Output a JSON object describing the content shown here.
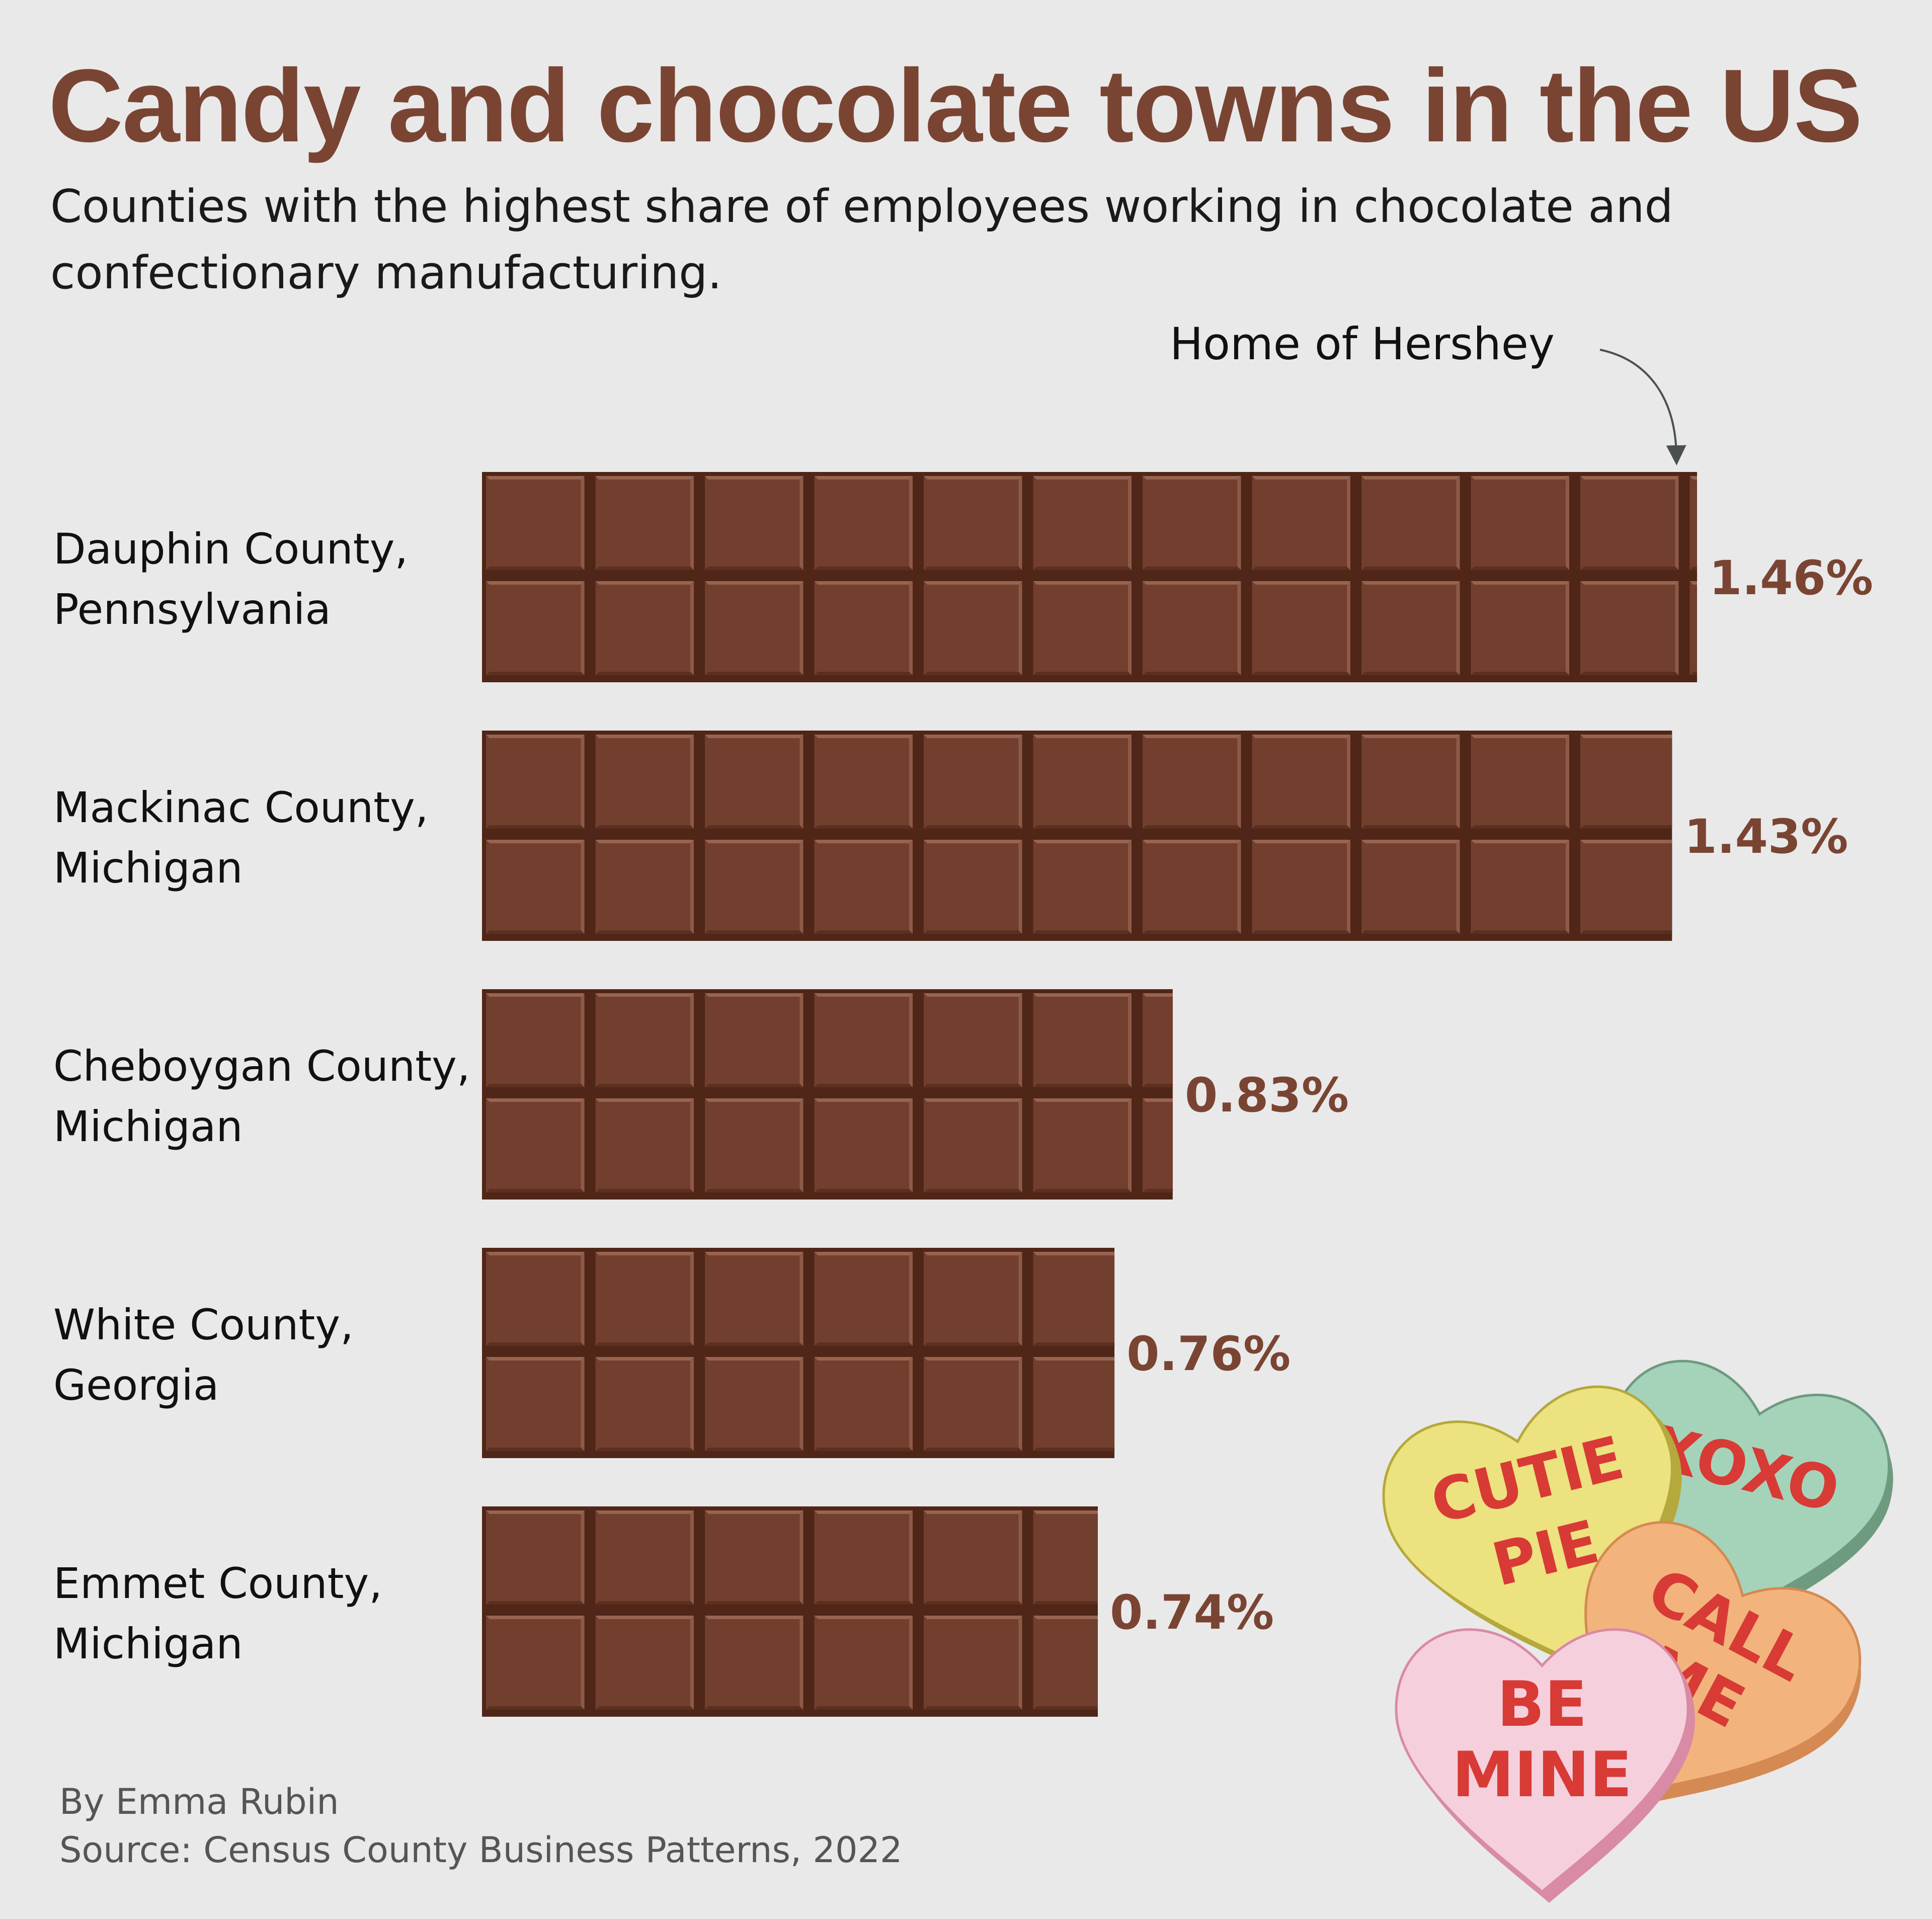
{
  "title": "Candy and chocolate towns in the US",
  "subtitle": "Counties with the highest share of employees working in chocolate and confectionary manufacturing.",
  "annotation": "Home of Hershey",
  "byline": "By Emma Rubin",
  "source": "Source: Census County Business Patterns, 2022",
  "colors": {
    "background": "#e9e9e9",
    "title": "#7a4433",
    "chocolate": "#723f2f",
    "chocolate_dark": "#4f2618",
    "chocolate_light": "#a5715c",
    "value_label": "#7a4433"
  },
  "chart_data": {
    "type": "bar",
    "orientation": "horizontal",
    "mark_style": "chocolate-bar",
    "unit": "%",
    "categories": [
      [
        "Dauphin County,",
        "Pennsylvania"
      ],
      [
        "Mackinac County,",
        "Michigan"
      ],
      [
        "Cheboygan County,",
        "Michigan"
      ],
      [
        "White County,",
        "Georgia"
      ],
      [
        "Emmet County,",
        "Michigan"
      ]
    ],
    "values": [
      1.46,
      1.43,
      0.83,
      0.76,
      0.74
    ],
    "value_labels": [
      "1.46%",
      "1.43%",
      "0.83%",
      "0.76%",
      "0.74%"
    ],
    "annotations": [
      {
        "category_index": 0,
        "text": "Home of Hershey"
      }
    ],
    "xlim": [
      0,
      1.46
    ],
    "grid": false,
    "legend": "none"
  },
  "decoration": {
    "candy_hearts": [
      {
        "text": [
          "XOXO"
        ],
        "color": "#a5d3b9",
        "edge": "#6e9a80"
      },
      {
        "text": [
          "CUTIE",
          "PIE"
        ],
        "color": "#ece27f",
        "edge": "#b5a83c"
      },
      {
        "text": [
          "CALL",
          "ME"
        ],
        "color": "#f2b47c",
        "edge": "#d48a52"
      },
      {
        "text": [
          "BE",
          "MINE"
        ],
        "color": "#f5d0dc",
        "edge": "#d98aa5"
      }
    ],
    "candy_text_color": "#d83a35"
  }
}
